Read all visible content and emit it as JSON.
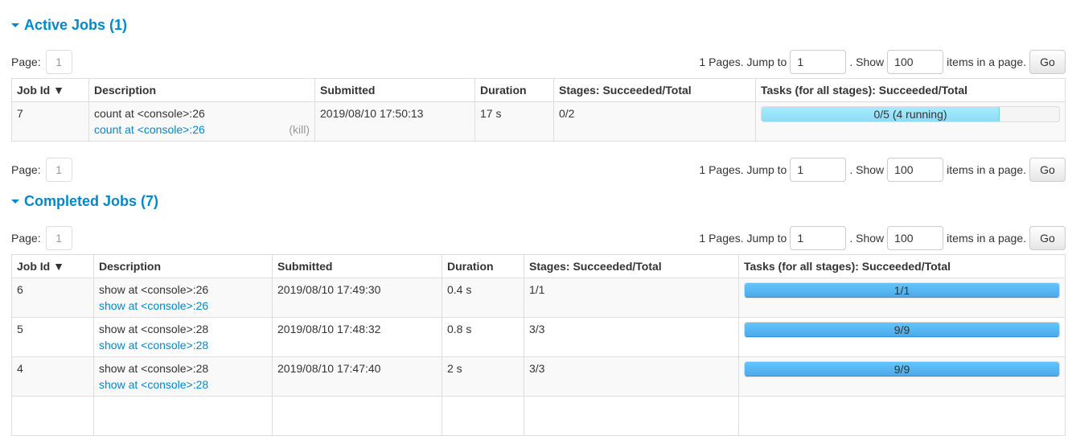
{
  "active": {
    "title": "Active Jobs (1)",
    "pager": {
      "page_label": "Page:",
      "page": "1",
      "pages_text": "1 Pages. Jump to",
      "jump_value": "1",
      "show_text": ". Show",
      "show_value": "100",
      "items_text": "items in a page.",
      "go": "Go"
    },
    "columns": [
      "Job Id ▼",
      "Description",
      "Submitted",
      "Duration",
      "Stages: Succeeded/Total",
      "Tasks (for all stages): Succeeded/Total"
    ],
    "rows": [
      {
        "id": "7",
        "desc": "count at <console>:26",
        "link": "count at <console>:26",
        "kill": "(kill)",
        "submitted": "2019/08/10 17:50:13",
        "duration": "17 s",
        "stages": "0/2",
        "tasks": "0/5 (4 running)",
        "succeeded_fraction": 0,
        "running_fraction": 0.8
      }
    ]
  },
  "completed": {
    "title": "Completed Jobs (7)",
    "pager": {
      "page_label": "Page:",
      "page": "1",
      "pages_text": "1 Pages. Jump to",
      "jump_value": "1",
      "show_text": ". Show",
      "show_value": "100",
      "items_text": "items in a page.",
      "go": "Go"
    },
    "columns": [
      "Job Id ▼",
      "Description",
      "Submitted",
      "Duration",
      "Stages: Succeeded/Total",
      "Tasks (for all stages): Succeeded/Total"
    ],
    "rows": [
      {
        "id": "6",
        "desc": "show at <console>:26",
        "link": "show at <console>:26",
        "submitted": "2019/08/10 17:49:30",
        "duration": "0.4 s",
        "stages": "1/1",
        "tasks": "1/1",
        "succeeded_fraction": 1
      },
      {
        "id": "5",
        "desc": "show at <console>:28",
        "link": "show at <console>:28",
        "submitted": "2019/08/10 17:48:32",
        "duration": "0.8 s",
        "stages": "3/3",
        "tasks": "9/9",
        "succeeded_fraction": 1
      },
      {
        "id": "4",
        "desc": "show at <console>:28",
        "link": "show at <console>:28",
        "submitted": "2019/08/10 17:47:40",
        "duration": "2 s",
        "stages": "3/3",
        "tasks": "9/9",
        "succeeded_fraction": 1
      }
    ]
  },
  "bottom_pager": {
    "page_label": "Page:",
    "page": "1",
    "pages_text": "1 Pages. Jump to",
    "jump_value": "1",
    "show_text": ". Show",
    "show_value": "100",
    "items_text": "items in a page.",
    "go": "Go"
  },
  "colors": {
    "heading": "#0088cc",
    "link": "#0088cc",
    "running_bar": "#8ddcf5",
    "succeeded_bar": "#4eaae8"
  }
}
